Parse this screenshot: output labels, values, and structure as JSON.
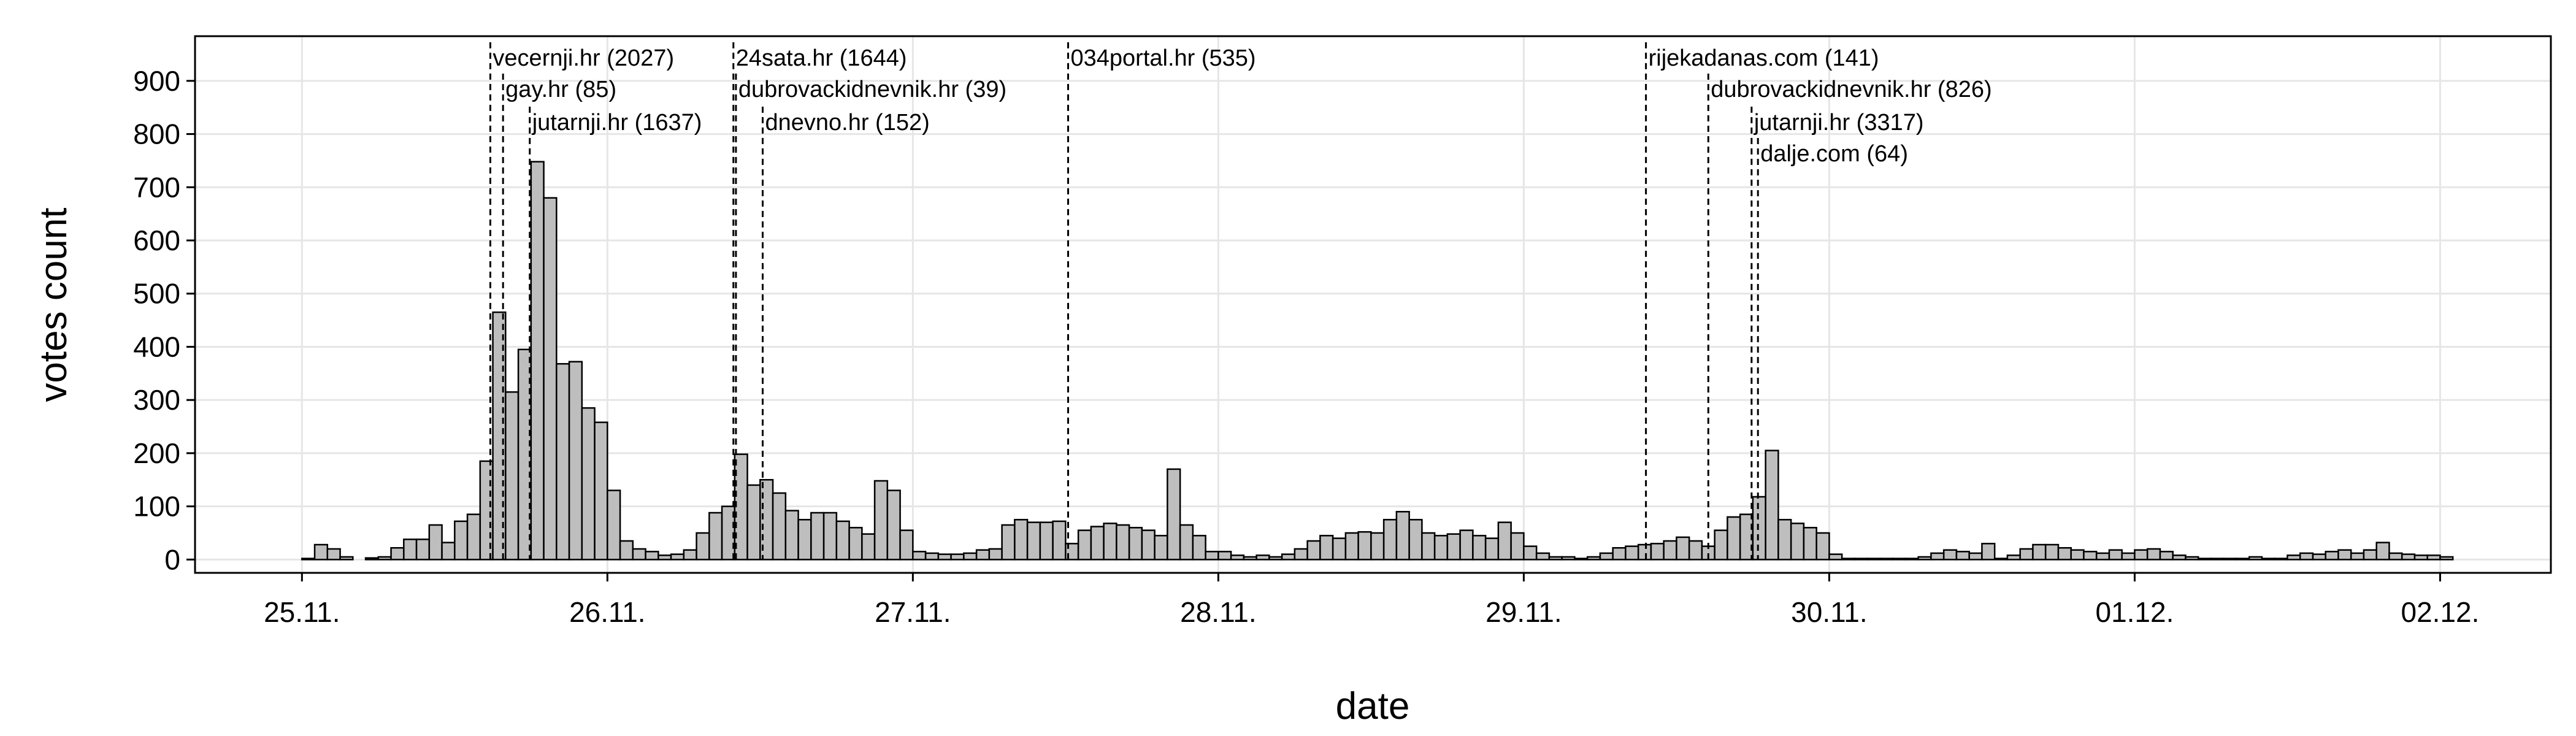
{
  "chart_data": {
    "type": "histogram",
    "xlabel": "date",
    "ylabel": "votes count",
    "bins": [
      0,
      1,
      2,
      3,
      4,
      5,
      6,
      7,
      8,
      9,
      10,
      11,
      12,
      13,
      14,
      15,
      16,
      17,
      18,
      19,
      20,
      21,
      22,
      23,
      24,
      25,
      26,
      27,
      28,
      29,
      30,
      31,
      32,
      33,
      34,
      35,
      36,
      37,
      38,
      39,
      40,
      41,
      42,
      43,
      44,
      45,
      46,
      47,
      48,
      49,
      50,
      51,
      52,
      53,
      54,
      55,
      56,
      57,
      58,
      59,
      60,
      61,
      62,
      63,
      64,
      65,
      66,
      67,
      68,
      69,
      70,
      71,
      72,
      73,
      74,
      75,
      76,
      77,
      78,
      79,
      80,
      81,
      82,
      83,
      84,
      85,
      86,
      87,
      88,
      89,
      90,
      91,
      92,
      93,
      94,
      95,
      96,
      97,
      98,
      99,
      100,
      101,
      102,
      103,
      104,
      105,
      106,
      107,
      108,
      109,
      110,
      111,
      112,
      113,
      114,
      115,
      116,
      117,
      118,
      119,
      120,
      121,
      122,
      123,
      124,
      125,
      126,
      127,
      128,
      129,
      130,
      131,
      132,
      133,
      134,
      135,
      136,
      137,
      138,
      139,
      140,
      141,
      142,
      143,
      144,
      145,
      146,
      147,
      148,
      149,
      150,
      151,
      152,
      153,
      154,
      155,
      156,
      157,
      158,
      159,
      160,
      161,
      162,
      163,
      164,
      165,
      166,
      167,
      168,
      169
    ],
    "values": [
      2,
      28,
      20,
      5,
      0,
      3,
      5,
      22,
      38,
      38,
      65,
      32,
      72,
      85,
      185,
      465,
      315,
      395,
      748,
      680,
      368,
      372,
      285,
      258,
      130,
      35,
      20,
      15,
      8,
      10,
      18,
      50,
      88,
      100,
      198,
      140,
      150,
      125,
      92,
      75,
      88,
      88,
      72,
      60,
      48,
      148,
      130,
      55,
      15,
      12,
      10,
      10,
      12,
      18,
      20,
      65,
      75,
      70,
      70,
      72,
      30,
      55,
      62,
      68,
      65,
      60,
      55,
      45,
      170,
      65,
      45,
      15,
      15,
      8,
      5,
      8,
      5,
      10,
      20,
      35,
      45,
      40,
      50,
      52,
      50,
      75,
      90,
      75,
      50,
      45,
      48,
      55,
      45,
      40,
      70,
      50,
      25,
      12,
      5,
      5,
      2,
      5,
      12,
      22,
      25,
      28,
      30,
      35,
      42,
      35,
      25,
      55,
      80,
      85,
      118,
      205,
      75,
      68,
      60,
      50,
      10,
      2,
      2,
      2,
      2,
      2,
      2,
      5,
      12,
      18,
      15,
      12,
      30,
      2,
      8,
      20,
      28,
      28,
      22,
      18,
      15,
      12,
      18,
      12,
      18,
      20,
      15,
      8,
      5,
      2,
      2,
      2,
      2,
      5,
      2,
      2,
      8,
      12,
      10,
      15,
      18,
      12,
      18,
      32,
      12,
      10,
      8,
      8,
      5
    ],
    "color": "#bebebe",
    "xlim": [
      -8.4,
      176.7
    ],
    "xticks": [
      {
        "value": 0,
        "label": "25.11."
      },
      {
        "value": 24,
        "label": "26.11."
      },
      {
        "value": 48,
        "label": "27.11."
      },
      {
        "value": 72,
        "label": "28.11."
      },
      {
        "value": 96,
        "label": "29.11."
      },
      {
        "value": 120,
        "label": "30.11."
      },
      {
        "value": 144,
        "label": "01.12."
      },
      {
        "value": 168,
        "label": "02.12."
      }
    ],
    "ylim": [
      -25,
      984
    ],
    "yticks": [
      0,
      100,
      200,
      300,
      400,
      500,
      600,
      700,
      800,
      900
    ],
    "grid": true,
    "annotations": [
      {
        "label": "vecernji.hr (2027)",
        "x": 14.8,
        "y": 938
      },
      {
        "label": "gay.hr (85)",
        "x": 15.8,
        "y": 879
      },
      {
        "label": "jutarnji.hr (1637)",
        "x": 17.9,
        "y": 817
      },
      {
        "label": "24sata.hr (1644)",
        "x": 33.9,
        "y": 938
      },
      {
        "label": "dubrovackidnevnik.hr (39)",
        "x": 34.1,
        "y": 879
      },
      {
        "label": "dnevno.hr (152)",
        "x": 36.2,
        "y": 817
      },
      {
        "label": "034portal.hr (535)",
        "x": 60.2,
        "y": 938
      },
      {
        "label": "rijekadanas.com (141)",
        "x": 105.6,
        "y": 938
      },
      {
        "label": "dubrovackidnevnik.hr (826)",
        "x": 110.5,
        "y": 879
      },
      {
        "label": "jutarnji.hr (3317)",
        "x": 113.9,
        "y": 817
      },
      {
        "label": "dalje.com (64)",
        "x": 114.4,
        "y": 758
      }
    ]
  }
}
